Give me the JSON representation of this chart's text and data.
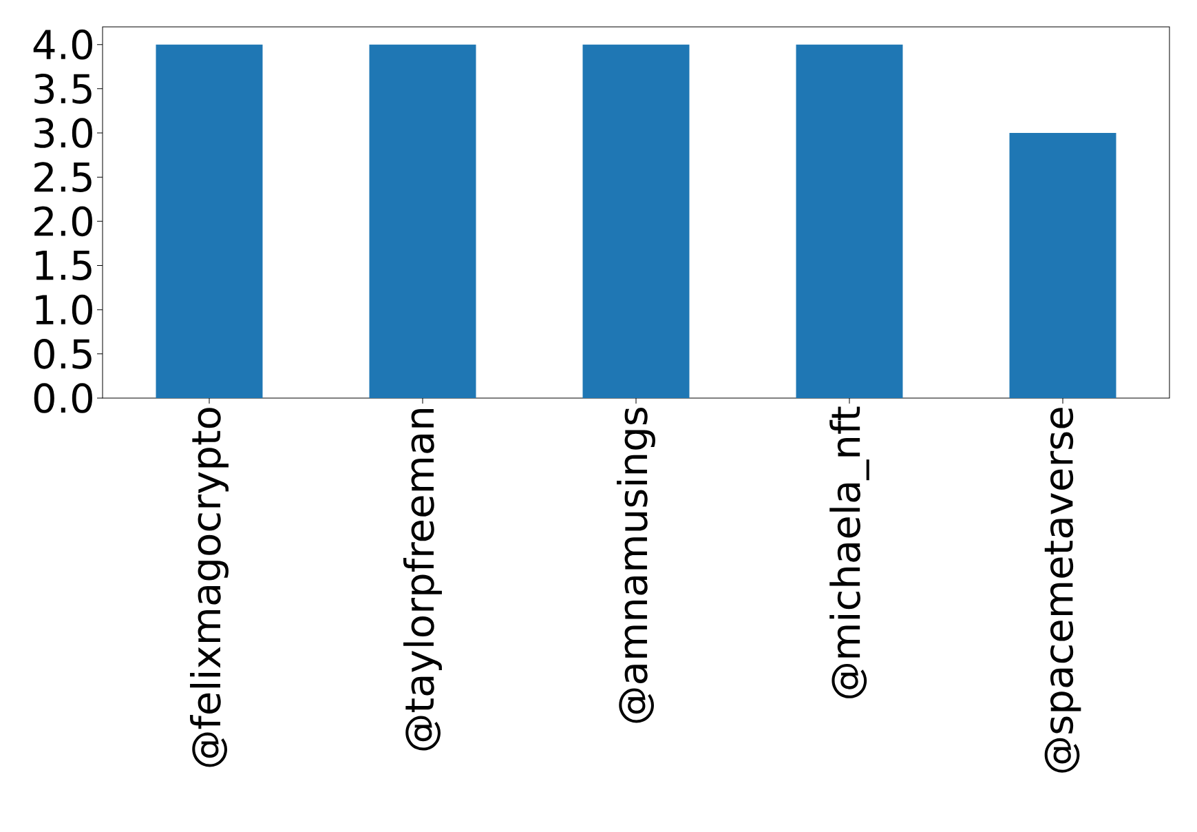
{
  "chart_data": {
    "type": "bar",
    "categories": [
      "@felixmagocrypto",
      "@taylorpfreeman",
      "@amnamusings",
      "@michaela_nft",
      "@spacemetaverse"
    ],
    "values": [
      4,
      4,
      4,
      4,
      3
    ],
    "color": "#1f77b4",
    "ylim": [
      0,
      4.2
    ],
    "yticks": [
      {
        "value": 0,
        "label": "0.0"
      },
      {
        "value": 0.5,
        "label": "0.5"
      },
      {
        "value": 1,
        "label": "1.0"
      },
      {
        "value": 1.5,
        "label": "1.5"
      },
      {
        "value": 2,
        "label": "2.0"
      },
      {
        "value": 2.5,
        "label": "2.5"
      },
      {
        "value": 3,
        "label": "3.0"
      },
      {
        "value": 3.5,
        "label": "3.5"
      },
      {
        "value": 4,
        "label": "4.0"
      }
    ]
  }
}
